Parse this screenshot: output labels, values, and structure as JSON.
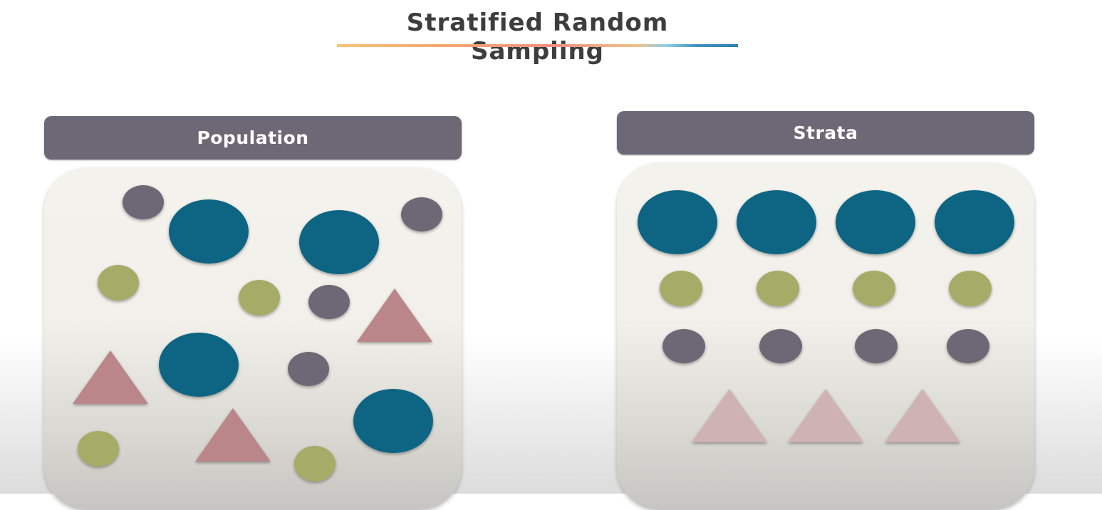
{
  "title": "Stratified Random Sampling",
  "panels": {
    "population": {
      "label": "Population"
    },
    "strata": {
      "label": "Strata"
    }
  },
  "colors": {
    "teal": "#0e6583",
    "olive": "#a7ab67",
    "gray": "#6d6874",
    "pink": "#bb8689",
    "pink_faded": "#cfb3b3",
    "header": "#6c6876"
  }
}
